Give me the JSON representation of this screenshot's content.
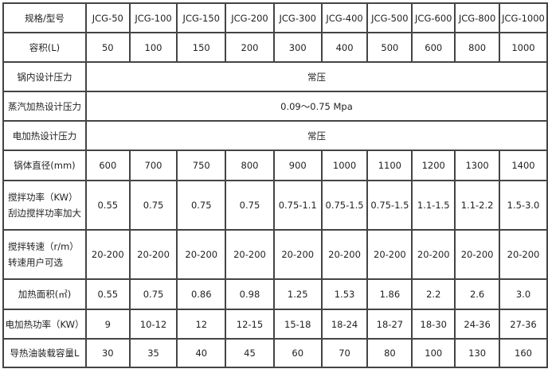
{
  "header": {
    "label": "规格/型号",
    "models": [
      "JCG-50",
      "JCG-100",
      "JCG-150",
      "JCG-200",
      "JCG-300",
      "JCG-400",
      "JCG-500",
      "JCG-600",
      "JCG-800",
      "JCG-1000"
    ]
  },
  "rows": [
    {
      "label": "容积(L)",
      "values": [
        "50",
        "100",
        "150",
        "200",
        "300",
        "400",
        "500",
        "600",
        "800",
        "1000"
      ]
    },
    {
      "label": "锅内设计压力",
      "merged": "常压"
    },
    {
      "label": "蒸汽加热设计压力",
      "merged": "0.09～0.75 Mpa"
    },
    {
      "label": "电加热设计压力",
      "merged": "常压"
    },
    {
      "label": "锅体直径(mm)",
      "values": [
        "600",
        "700",
        "750",
        "800",
        "900",
        "1000",
        "1100",
        "1200",
        "1300",
        "1400"
      ]
    },
    {
      "label": "搅拌功率（KW）",
      "label2": "刮边搅拌功率加大",
      "values": [
        "0.55",
        "0.75",
        "0.75",
        "0.75",
        "0.75-1.1",
        "0.75-1.5",
        "0.75-1.5",
        "1.1-1.5",
        "1.1-2.2",
        "1.5-3.0"
      ]
    },
    {
      "label": "搅拌转速（r/m）",
      "label2": "转速用户可选",
      "values": [
        "20-200",
        "20-200",
        "20-200",
        "20-200",
        "20-200",
        "20-200",
        "20-200",
        "20-200",
        "20-200",
        "20-200"
      ]
    },
    {
      "label": "加热面积(㎡)",
      "values": [
        "0.55",
        "0.75",
        "0.86",
        "0.98",
        "1.25",
        "1.53",
        "1.86",
        "2.2",
        "2.6",
        "3.0"
      ]
    },
    {
      "label": "电加热功率（KW）",
      "values": [
        "9",
        "10-12",
        "12",
        "12-15",
        "15-18",
        "18-24",
        "18-27",
        "18-30",
        "24-36",
        "27-36"
      ]
    },
    {
      "label": "导热油装载容量L",
      "values": [
        "30",
        "35",
        "40",
        "45",
        "60",
        "70",
        "80",
        "100",
        "130",
        "160"
      ]
    }
  ]
}
